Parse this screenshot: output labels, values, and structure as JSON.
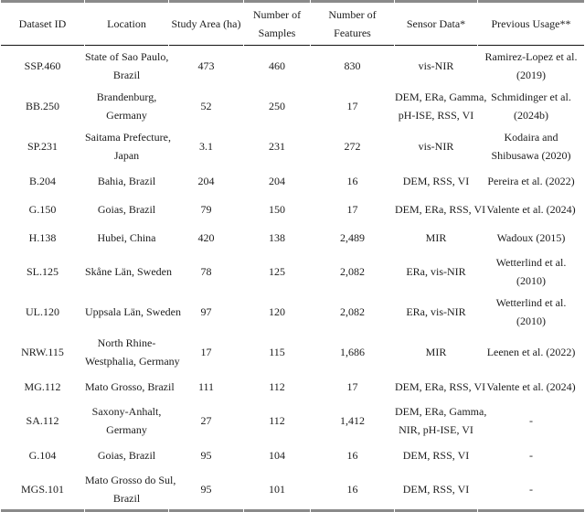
{
  "colors": {
    "background": "#ffffff",
    "text": "#1c1c1c",
    "rule_black": "#151515",
    "border_gray": "#8a8a8a"
  },
  "table": {
    "columns": [
      {
        "key": "id",
        "label": "Dataset ID"
      },
      {
        "key": "location",
        "label": "Location"
      },
      {
        "key": "area",
        "label": "Study Area (ha)"
      },
      {
        "key": "samples",
        "label": "Number of\nSamples"
      },
      {
        "key": "features",
        "label": "Number of\nFeatures"
      },
      {
        "key": "sensor",
        "label": "Sensor Data*"
      },
      {
        "key": "usage",
        "label": "Previous Usage**"
      }
    ],
    "rows": [
      {
        "id": "SSP.460",
        "location": "State of Sao Paulo,\nBrazil",
        "area": "473",
        "samples": "460",
        "features": "830",
        "sensor": "vis-NIR",
        "usage": "Ramirez-Lopez et al.\n(2019)"
      },
      {
        "id": "BB.250",
        "location": "Brandenburg,\nGermany",
        "area": "52",
        "samples": "250",
        "features": "17",
        "sensor": "DEM, ERa, Gamma,\npH-ISE, RSS, VI",
        "usage": "Schmidinger et al.\n(2024b)"
      },
      {
        "id": "SP.231",
        "location": "Saitama Prefecture,\nJapan",
        "area": "3.1",
        "samples": "231",
        "features": "272",
        "sensor": "vis-NIR",
        "usage": "Kodaira and\nShibusawa (2020)"
      },
      {
        "id": "B.204",
        "location": "Bahia, Brazil",
        "area": "204",
        "samples": "204",
        "features": "16",
        "sensor": "DEM, RSS, VI",
        "usage": "Pereira et al. (2022)"
      },
      {
        "id": "G.150",
        "location": "Goias, Brazil",
        "area": "79",
        "samples": "150",
        "features": "17",
        "sensor": "DEM, ERa, RSS, VI",
        "usage": "Valente et al. (2024)"
      },
      {
        "id": "H.138",
        "location": "Hubei, China",
        "area": "420",
        "samples": "138",
        "features": "2,489",
        "sensor": "MIR",
        "usage": "Wadoux (2015)"
      },
      {
        "id": "SL.125",
        "location": "Skåne Län, Sweden",
        "area": "78",
        "samples": "125",
        "features": "2,082",
        "sensor": "ERa, vis-NIR",
        "usage": "Wetterlind et al.\n(2010)"
      },
      {
        "id": "UL.120",
        "location": "Uppsala Län, Sweden",
        "area": "97",
        "samples": "120",
        "features": "2,082",
        "sensor": "ERa, vis-NIR",
        "usage": "Wetterlind et al.\n(2010)"
      },
      {
        "id": "NRW.115",
        "location": "North Rhine-\nWestphalia, Germany",
        "area": "17",
        "samples": "115",
        "features": "1,686",
        "sensor": "MIR",
        "usage": "Leenen et al. (2022)"
      },
      {
        "id": "MG.112",
        "location": "Mato Grosso, Brazil",
        "area": "111",
        "samples": "112",
        "features": "17",
        "sensor": "DEM, ERa, RSS, VI",
        "usage": "Valente et al. (2024)"
      },
      {
        "id": "SA.112",
        "location": "Saxony-Anhalt,\nGermany",
        "area": "27",
        "samples": "112",
        "features": "1,412",
        "sensor": "DEM, ERa, Gamma,\nNIR, pH-ISE, VI",
        "usage": "-"
      },
      {
        "id": "G.104",
        "location": "Goias, Brazil",
        "area": "95",
        "samples": "104",
        "features": "16",
        "sensor": "DEM, RSS, VI",
        "usage": "-"
      },
      {
        "id": "MGS.101",
        "location": "Mato Grosso do Sul,\nBrazil",
        "area": "95",
        "samples": "101",
        "features": "16",
        "sensor": "DEM, RSS, VI",
        "usage": "-"
      }
    ]
  }
}
